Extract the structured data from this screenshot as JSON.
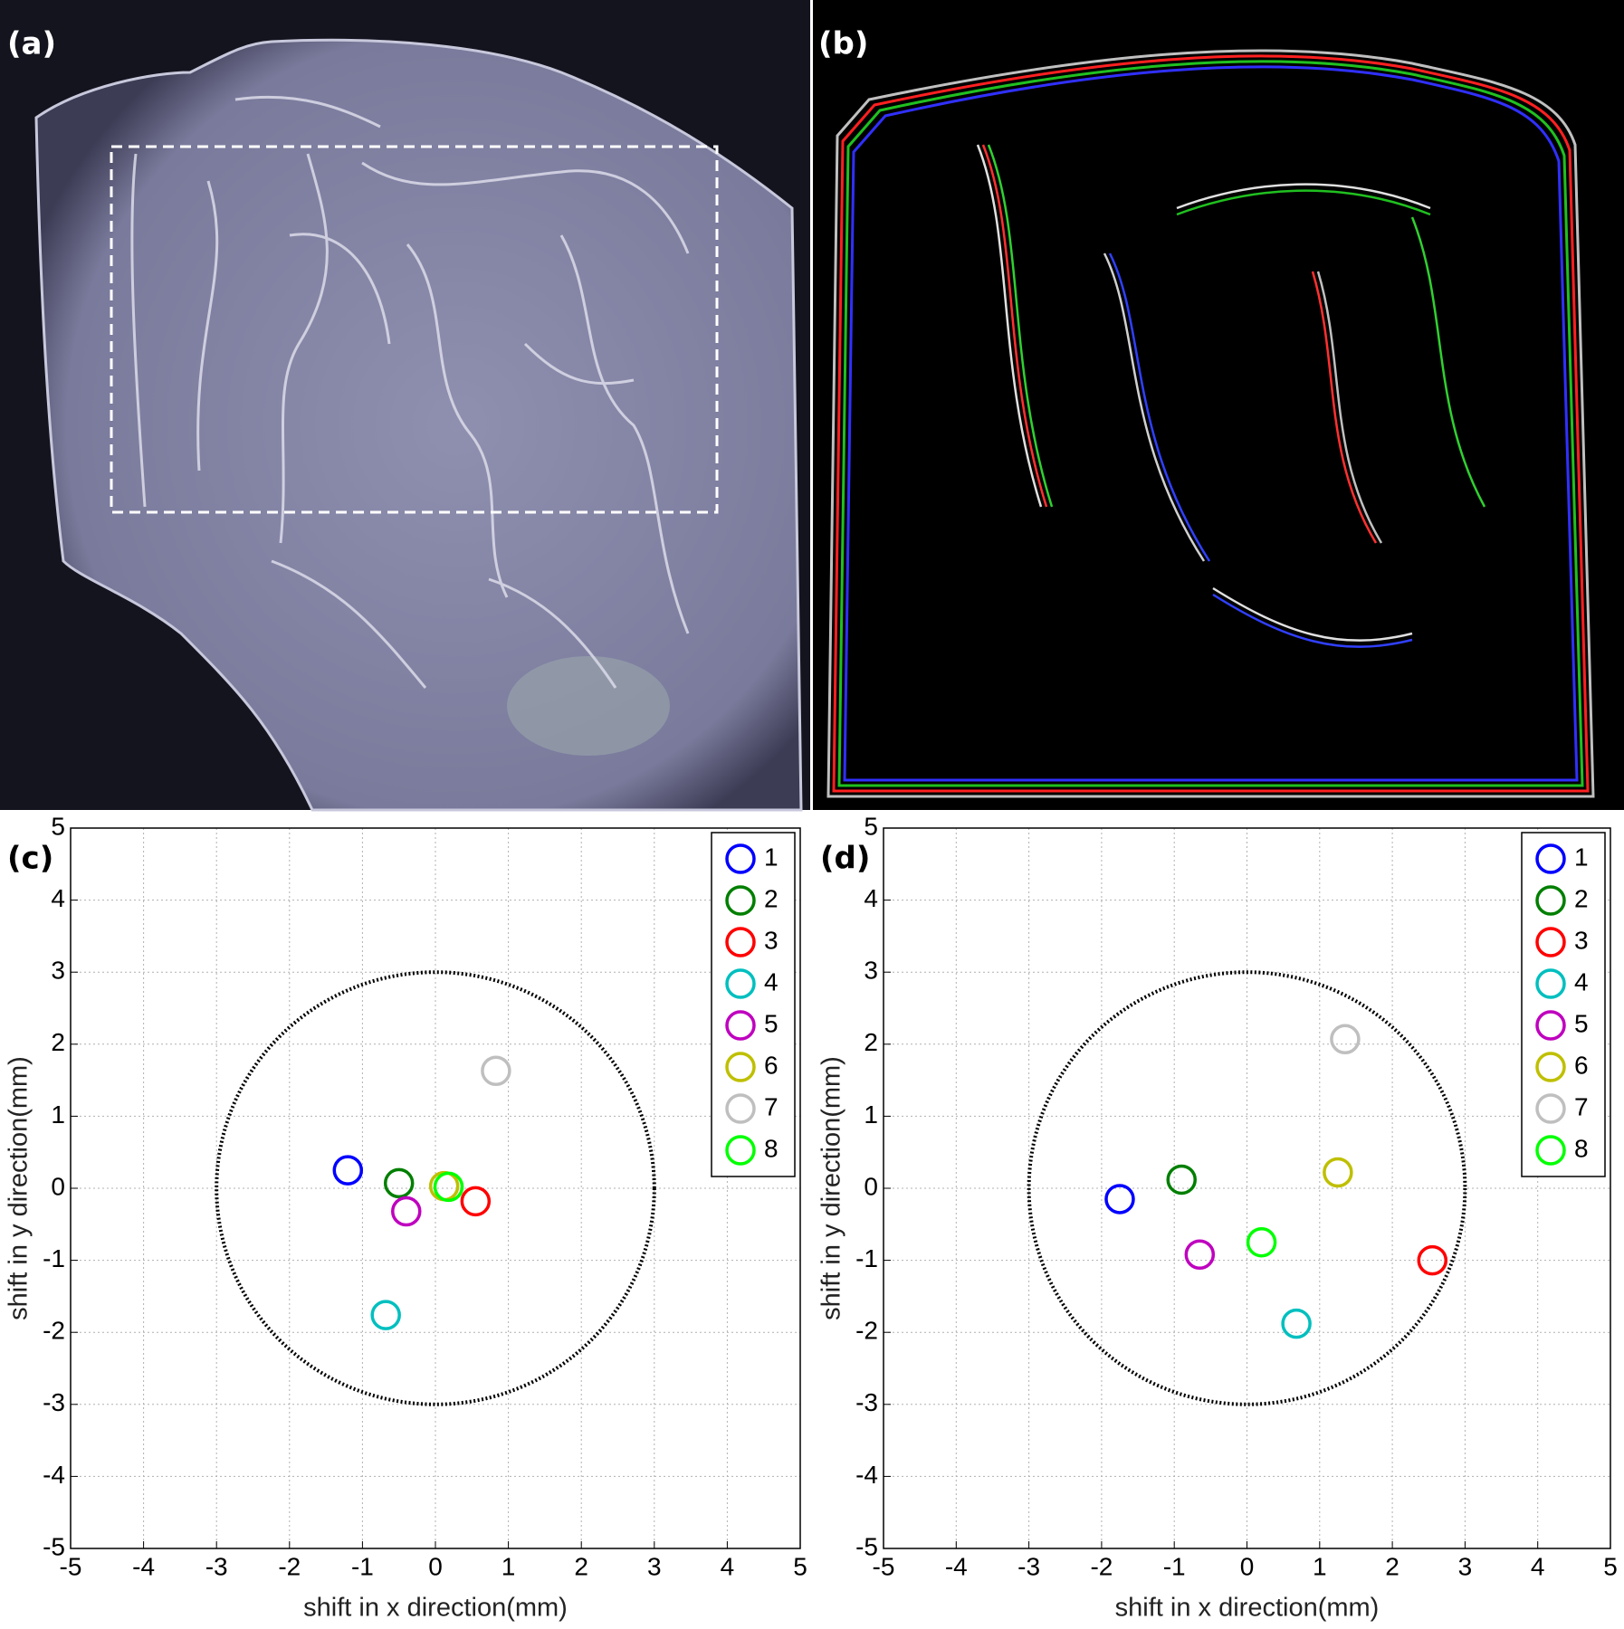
{
  "panels": [
    {
      "label": "(a)"
    },
    {
      "label": "(b)"
    }
  ],
  "chart_data": [
    {
      "type": "scatter",
      "label": "(c)",
      "x_label": "shift in x direction(mm)",
      "y_label": "shift in y direction(mm)",
      "xlim": [
        -5,
        5
      ],
      "ylim": [
        -5,
        5
      ],
      "xticks": [
        -5,
        -4,
        -3,
        -2,
        -1,
        0,
        1,
        2,
        3,
        4,
        5
      ],
      "yticks": [
        -5,
        -4,
        -3,
        -2,
        -1,
        0,
        1,
        2,
        3,
        4,
        5
      ],
      "grid": true,
      "legend": "upper right",
      "circle_radius": 3,
      "series": [
        {
          "name": "1",
          "color": "#0000ff",
          "x": [
            -1.2
          ],
          "values": [
            0.25
          ]
        },
        {
          "name": "2",
          "color": "#007f00",
          "x": [
            -0.5
          ],
          "values": [
            0.07
          ]
        },
        {
          "name": "3",
          "color": "#ff0000",
          "x": [
            0.55
          ],
          "values": [
            -0.18
          ]
        },
        {
          "name": "4",
          "color": "#00bfbf",
          "x": [
            -0.68
          ],
          "values": [
            -1.76
          ]
        },
        {
          "name": "5",
          "color": "#bf00bf",
          "x": [
            -0.4
          ],
          "values": [
            -0.32
          ]
        },
        {
          "name": "6",
          "color": "#bfbf00",
          "x": [
            0.12
          ],
          "values": [
            0.03
          ]
        },
        {
          "name": "7",
          "color": "#bfbfbf",
          "x": [
            0.83
          ],
          "values": [
            1.63
          ]
        },
        {
          "name": "8",
          "color": "#00ff00",
          "x": [
            0.18
          ],
          "values": [
            0.02
          ]
        }
      ]
    },
    {
      "type": "scatter",
      "label": "(d)",
      "x_label": "shift in x direction(mm)",
      "y_label": "shift in y direction(mm)",
      "xlim": [
        -5,
        5
      ],
      "ylim": [
        -5,
        5
      ],
      "xticks": [
        -5,
        -4,
        -3,
        -2,
        -1,
        0,
        1,
        2,
        3,
        4,
        5
      ],
      "yticks": [
        -5,
        -4,
        -3,
        -2,
        -1,
        0,
        1,
        2,
        3,
        4,
        5
      ],
      "grid": true,
      "legend": "upper right",
      "circle_radius": 3,
      "series": [
        {
          "name": "1",
          "color": "#0000ff",
          "x": [
            -1.75
          ],
          "values": [
            -0.15
          ]
        },
        {
          "name": "2",
          "color": "#007f00",
          "x": [
            -0.9
          ],
          "values": [
            0.12
          ]
        },
        {
          "name": "3",
          "color": "#ff0000",
          "x": [
            2.55
          ],
          "values": [
            -1.0
          ]
        },
        {
          "name": "4",
          "color": "#00bfbf",
          "x": [
            0.68
          ],
          "values": [
            -1.88
          ]
        },
        {
          "name": "5",
          "color": "#bf00bf",
          "x": [
            -0.65
          ],
          "values": [
            -0.92
          ]
        },
        {
          "name": "6",
          "color": "#bfbf00",
          "x": [
            1.25
          ],
          "values": [
            0.22
          ]
        },
        {
          "name": "7",
          "color": "#bfbfbf",
          "x": [
            1.35
          ],
          "values": [
            2.07
          ]
        },
        {
          "name": "8",
          "color": "#00ff00",
          "x": [
            0.2
          ],
          "values": [
            -0.75
          ]
        }
      ]
    }
  ]
}
